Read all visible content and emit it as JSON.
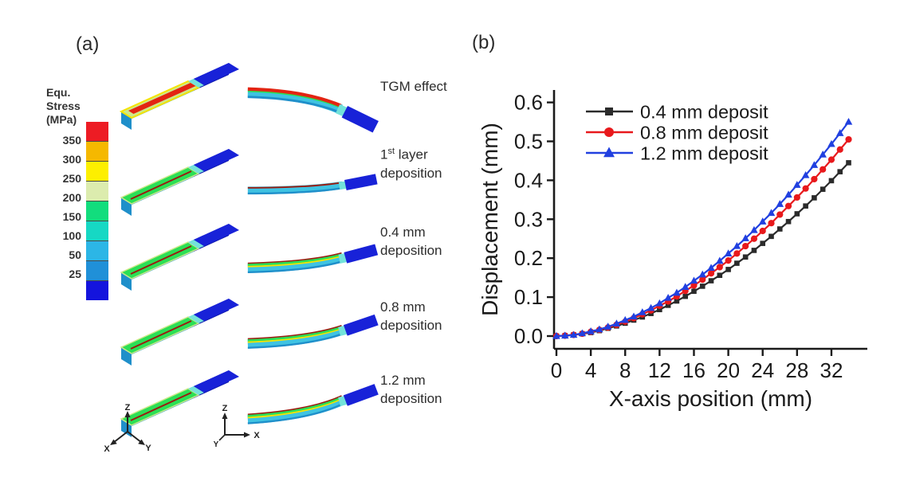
{
  "figure": {
    "panel_a_label": "(a)",
    "panel_b_label": "(b)"
  },
  "stress_legend": {
    "title_lines": [
      "Equ.",
      "Stress",
      "(MPa)"
    ],
    "tick_labels": [
      "350",
      "300",
      "250",
      "200",
      "150",
      "100",
      "50",
      "25"
    ],
    "colors": [
      "#ed1c24",
      "#f5b800",
      "#fdef00",
      "#dcecae",
      "#12dd7d",
      "#16d8c4",
      "#2cb6e6",
      "#2090d8",
      "#1414dd"
    ]
  },
  "panel_a": {
    "rows": [
      {
        "caption_line1": "TGM effect",
        "caption_line2": ""
      },
      {
        "cap_num": "1",
        "cap_sup": "st",
        "cap_rest": " layer",
        "caption_line2": "deposition"
      },
      {
        "caption_line1": "0.4 mm",
        "caption_line2": "deposition"
      },
      {
        "caption_line1": "0.8 mm",
        "caption_line2": "deposition"
      },
      {
        "caption_line1": "1.2 mm",
        "caption_line2": "deposition"
      }
    ],
    "triads": {
      "iso": {
        "up": "Z",
        "lower_right": "Y",
        "lower_left": "X"
      },
      "side": {
        "up": "Z",
        "right": "X",
        "lower_left": "Y"
      }
    },
    "palette": {
      "beam_green": "#2bdf55",
      "beam_pale": "#cde98a",
      "beam_cyan": "#3fc3e2",
      "beam_cyan_dark": "#1f8fca",
      "beam_blue": "#1822d8",
      "beam_blue_dark": "#101ab0",
      "stripe_red": "#e32412",
      "stripe_dark_red": "#9b1c10",
      "stripe_yellow": "#f5e400",
      "transition_cyan": "#73e2da"
    }
  },
  "chart_data": {
    "type": "line",
    "title": "",
    "xlabel": "X-axis position (mm)",
    "ylabel": "Displacement (mm)",
    "xlim": [
      -0.3,
      36.2
    ],
    "ylim": [
      -0.033,
      0.632
    ],
    "xticks": [
      0,
      4,
      8,
      12,
      16,
      20,
      24,
      28,
      32
    ],
    "yticks": [
      0.0,
      0.1,
      0.2,
      0.3,
      0.4,
      0.5,
      0.6
    ],
    "grid": false,
    "legend_position": "top-left-inside",
    "x": [
      0,
      1,
      2,
      3,
      4,
      5,
      6,
      7,
      8,
      9,
      10,
      11,
      12,
      13,
      14,
      15,
      16,
      17,
      18,
      19,
      20,
      21,
      22,
      23,
      24,
      25,
      26,
      27,
      28,
      29,
      30,
      31,
      32,
      33,
      34
    ],
    "series": [
      {
        "name": "0.4 mm deposit",
        "color": "#2b2b2b",
        "marker": "square",
        "values": [
          0,
          0.001,
          0.003,
          0.006,
          0.009,
          0.014,
          0.02,
          0.026,
          0.033,
          0.041,
          0.049,
          0.058,
          0.068,
          0.079,
          0.09,
          0.102,
          0.115,
          0.128,
          0.142,
          0.156,
          0.171,
          0.187,
          0.203,
          0.22,
          0.238,
          0.256,
          0.275,
          0.294,
          0.314,
          0.334,
          0.355,
          0.377,
          0.399,
          0.422,
          0.445
        ]
      },
      {
        "name": "0.8 mm deposit",
        "color": "#e8191c",
        "marker": "circle",
        "values": [
          0,
          0.001,
          0.003,
          0.006,
          0.011,
          0.016,
          0.022,
          0.029,
          0.037,
          0.046,
          0.056,
          0.066,
          0.078,
          0.089,
          0.102,
          0.116,
          0.13,
          0.145,
          0.161,
          0.177,
          0.194,
          0.212,
          0.231,
          0.25,
          0.27,
          0.29,
          0.312,
          0.334,
          0.356,
          0.379,
          0.403,
          0.428,
          0.453,
          0.479,
          0.505
        ]
      },
      {
        "name": "1.2 mm deposit",
        "color": "#2140e0",
        "marker": "triangle",
        "values": [
          0,
          0.001,
          0.003,
          0.007,
          0.012,
          0.017,
          0.024,
          0.032,
          0.041,
          0.05,
          0.061,
          0.072,
          0.084,
          0.098,
          0.111,
          0.126,
          0.142,
          0.158,
          0.175,
          0.193,
          0.212,
          0.231,
          0.251,
          0.272,
          0.294,
          0.316,
          0.339,
          0.363,
          0.388,
          0.413,
          0.439,
          0.466,
          0.493,
          0.521,
          0.55
        ]
      }
    ]
  }
}
